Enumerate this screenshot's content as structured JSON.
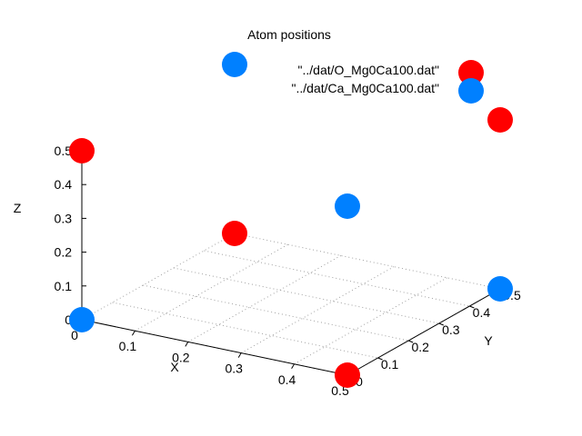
{
  "chart_data": {
    "type": "scatter",
    "projection": "3d",
    "title": "Atom positions",
    "xlabel": "X",
    "ylabel": "Y",
    "zlabel": "Z",
    "xlim": [
      0,
      0.5
    ],
    "ylim": [
      0,
      0.5
    ],
    "zlim": [
      0,
      0.5
    ],
    "x_ticks": [
      "0",
      "0.1",
      "0.2",
      "0.3",
      "0.4",
      "0.5"
    ],
    "y_ticks": [
      "0",
      "0.1",
      "0.2",
      "0.3",
      "0.4",
      "0.5"
    ],
    "z_ticks": [
      "0",
      "0.1",
      "0.2",
      "0.3",
      "0.4",
      "0.5"
    ],
    "grid": true,
    "legend_position": "top-right",
    "series": [
      {
        "name": "\"../dat/O_Mg0Ca100.dat\"",
        "color": "#ff0000",
        "points": [
          {
            "x": 0,
            "y": 0,
            "z": 0.5
          },
          {
            "x": 0,
            "y": 0.5,
            "z": 0
          },
          {
            "x": 0.5,
            "y": 0,
            "z": 0
          },
          {
            "x": 0.5,
            "y": 0.5,
            "z": 0.5
          }
        ]
      },
      {
        "name": "\"../dat/Ca_Mg0Ca100.dat\"",
        "color": "#0080ff",
        "points": [
          {
            "x": 0,
            "y": 0,
            "z": 0
          },
          {
            "x": 0.5,
            "y": 0.5,
            "z": 0
          },
          {
            "x": 0.5,
            "y": 0,
            "z": 0.5
          },
          {
            "x": 0,
            "y": 0.5,
            "z": 0.5
          }
        ]
      }
    ]
  }
}
